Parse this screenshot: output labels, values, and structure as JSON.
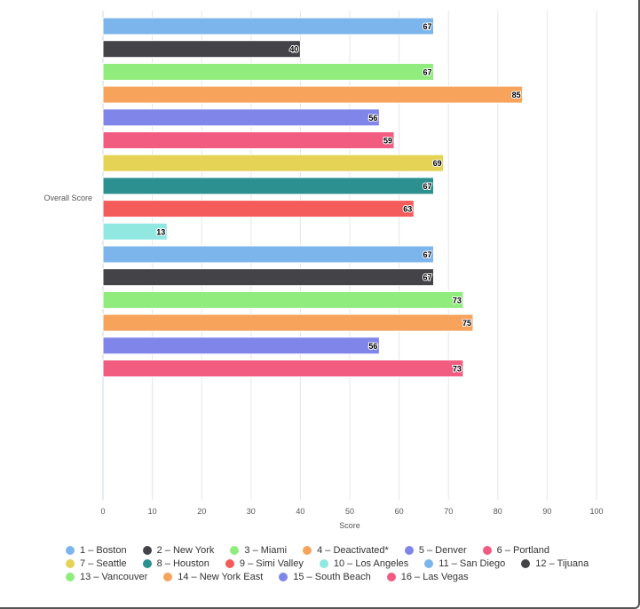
{
  "chart_data": {
    "type": "bar",
    "orientation": "horizontal",
    "category_label": "Overall Score",
    "xlabel": "Score",
    "xlim": [
      0,
      100
    ],
    "x_ticks": [
      0,
      10,
      20,
      30,
      40,
      50,
      60,
      70,
      80,
      90,
      100
    ],
    "grid": true,
    "legend_position": "bottom",
    "series": [
      {
        "name": "1 – Boston",
        "value": 67,
        "color": "#7cb5ec"
      },
      {
        "name": "2 – New York",
        "value": 40,
        "color": "#434348"
      },
      {
        "name": "3 – Miami",
        "value": 67,
        "color": "#90ed7d"
      },
      {
        "name": "4 – Deactivated*",
        "value": 85,
        "color": "#f7a35c"
      },
      {
        "name": "5 – Denver",
        "value": 56,
        "color": "#8085e9"
      },
      {
        "name": "6 – Portland",
        "value": 59,
        "color": "#f15c80"
      },
      {
        "name": "7 – Seattle",
        "value": 69,
        "color": "#e4d354"
      },
      {
        "name": "8 – Houston",
        "value": 67,
        "color": "#2b908f"
      },
      {
        "name": "9 – Simi Valley",
        "value": 63,
        "color": "#f45b5b"
      },
      {
        "name": "10 – Los Angeles",
        "value": 13,
        "color": "#91e8e1"
      },
      {
        "name": "11 – San Diego",
        "value": 67,
        "color": "#7cb5ec"
      },
      {
        "name": "12 – Tijuana",
        "value": 67,
        "color": "#434348"
      },
      {
        "name": "13 – Vancouver",
        "value": 73,
        "color": "#90ed7d"
      },
      {
        "name": "14 – New York East",
        "value": 75,
        "color": "#f7a35c"
      },
      {
        "name": "15 – South Beach",
        "value": 56,
        "color": "#8085e9"
      },
      {
        "name": "16 – Las Vegas",
        "value": 73,
        "color": "#f15c80"
      }
    ]
  }
}
